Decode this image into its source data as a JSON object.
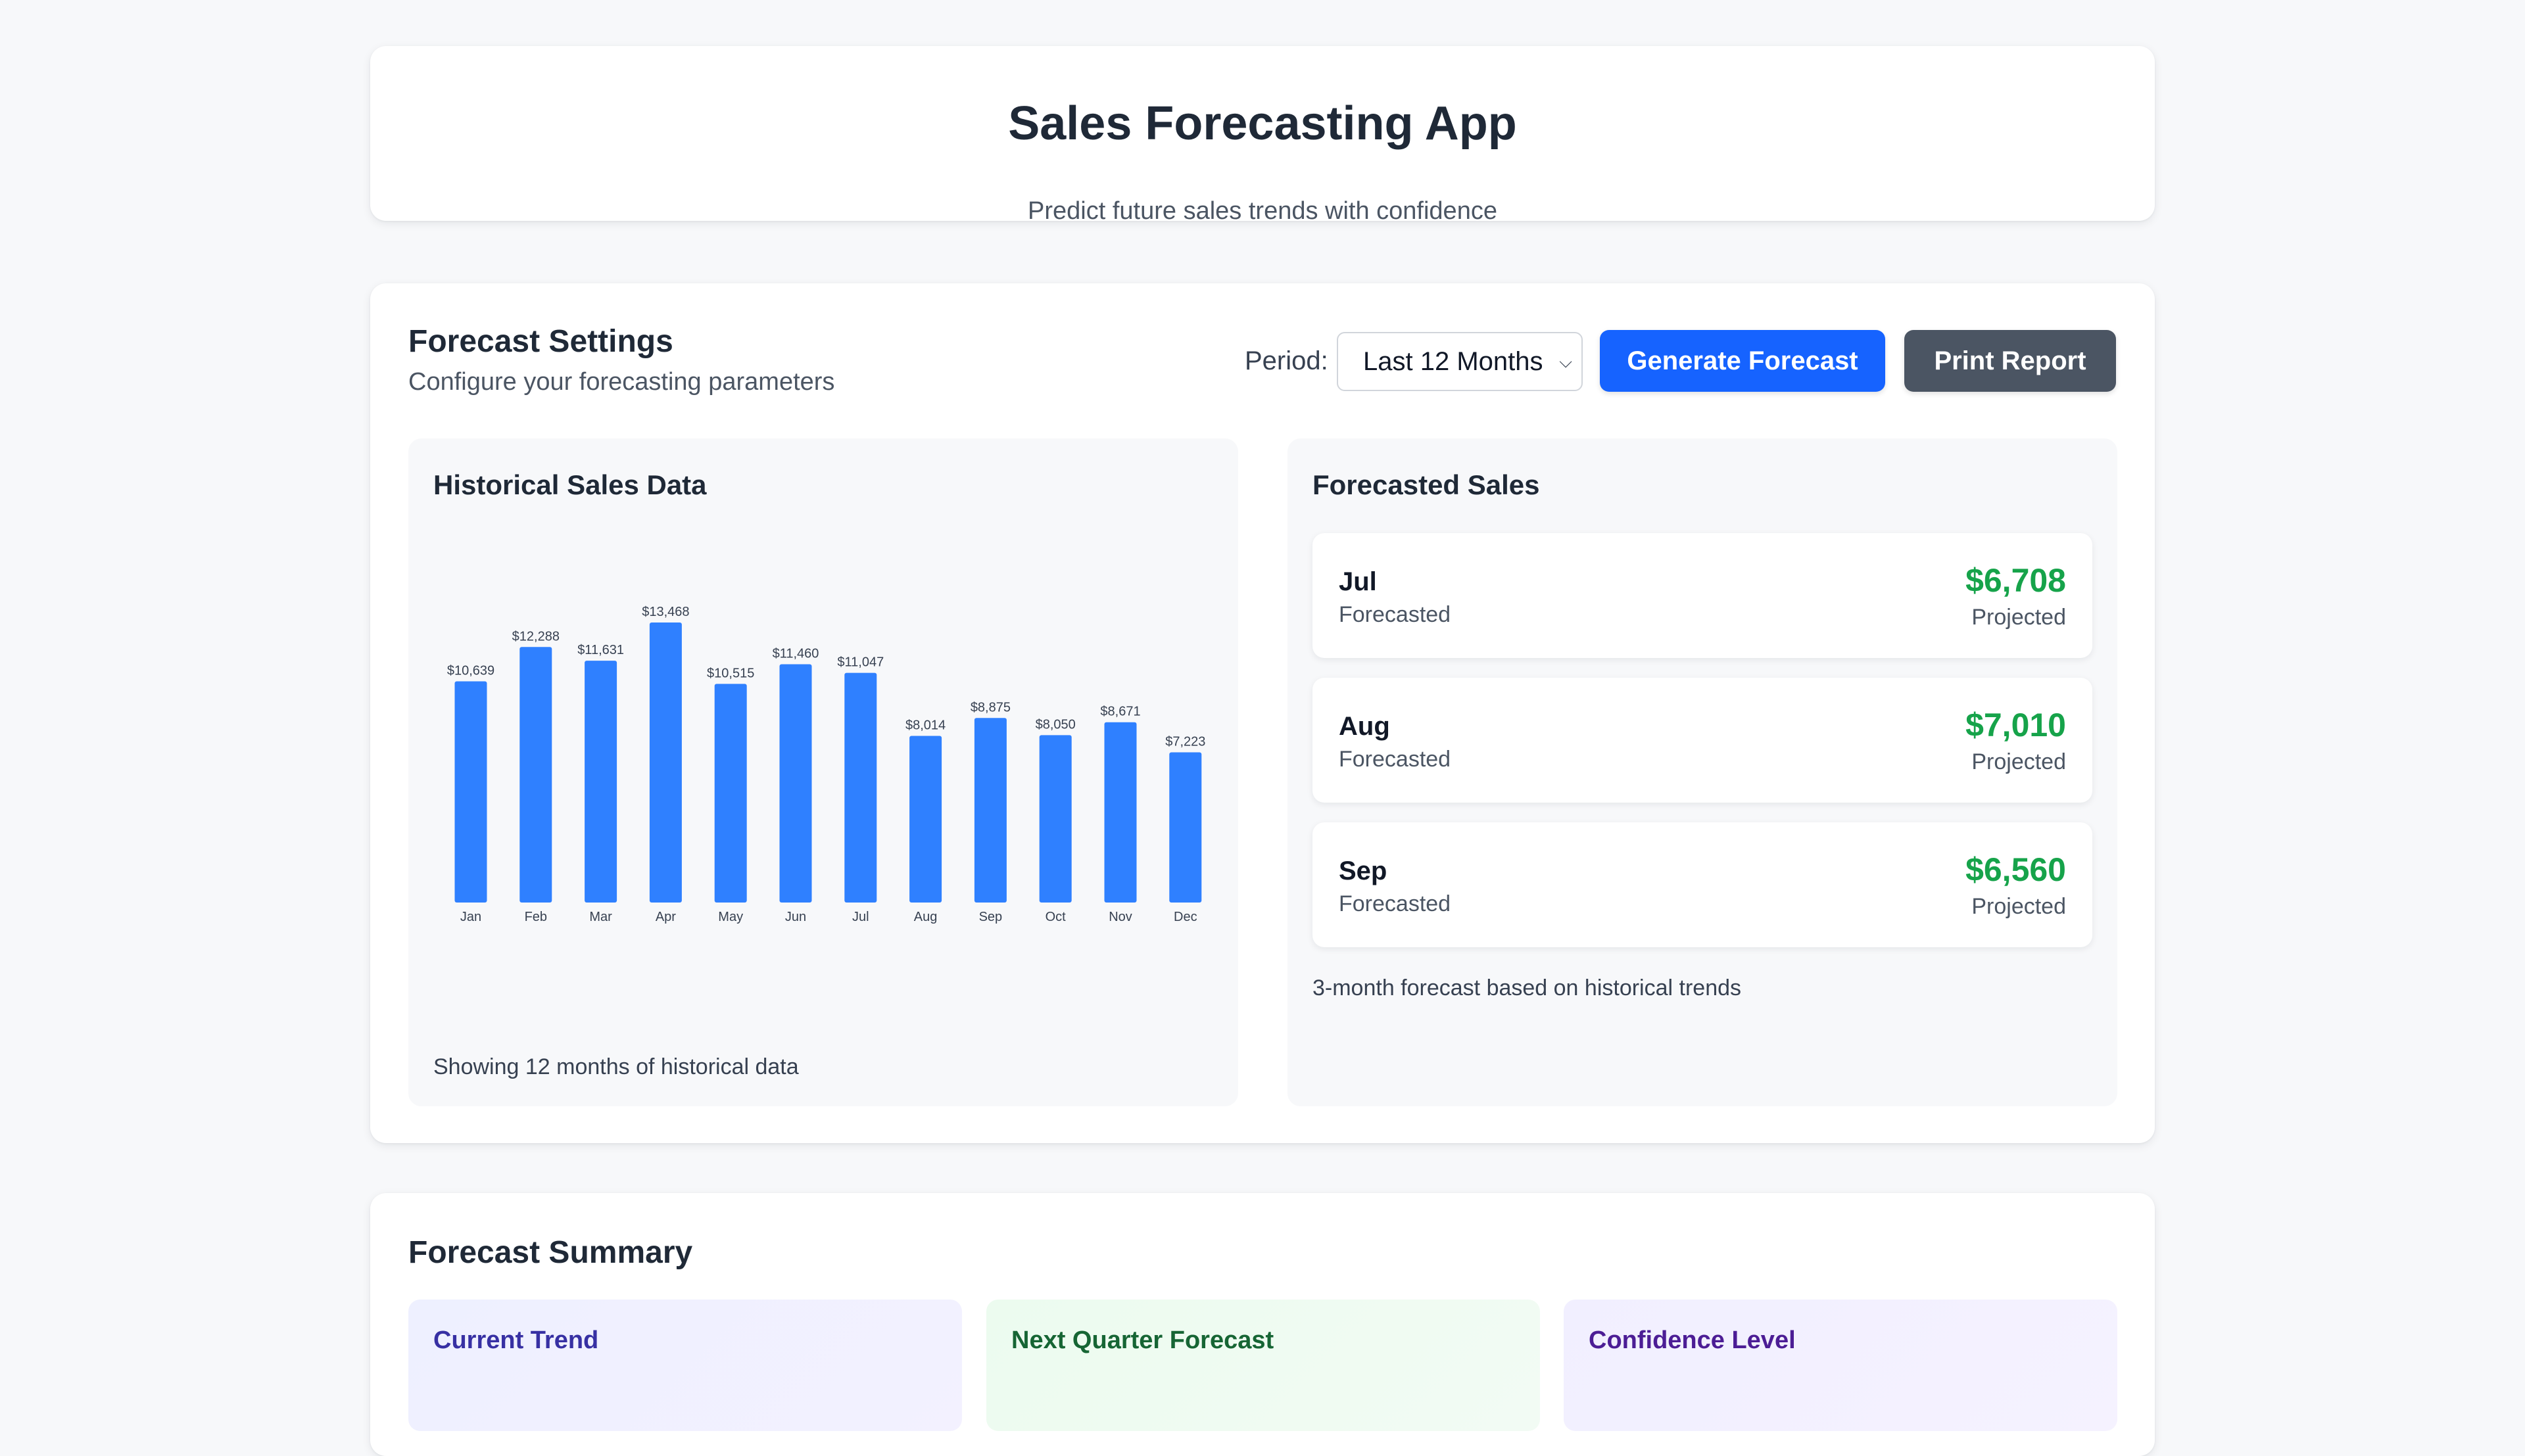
{
  "header": {
    "title": "Sales Forecasting App",
    "subtitle": "Predict future sales trends with confidence"
  },
  "settings": {
    "title": "Forecast Settings",
    "subtitle": "Configure your forecasting parameters",
    "period_label": "Period:",
    "period_value": "Last 12 Months",
    "generate_label": "Generate Forecast",
    "print_label": "Print Report"
  },
  "historical": {
    "title": "Historical Sales Data",
    "note": "Showing 12 months of historical data"
  },
  "chart_data": {
    "type": "bar",
    "categories": [
      "Jan",
      "Feb",
      "Mar",
      "Apr",
      "May",
      "Jun",
      "Jul",
      "Aug",
      "Sep",
      "Oct",
      "Nov",
      "Dec"
    ],
    "values": [
      10639,
      12288,
      11631,
      13468,
      10515,
      11460,
      11047,
      8014,
      8875,
      8050,
      8671,
      7223
    ],
    "labels": [
      "$10,639",
      "$12,288",
      "$11,631",
      "$13,468",
      "$10,515",
      "$11,460",
      "$11,047",
      "$8,014",
      "$8,875",
      "$8,050",
      "$8,671",
      "$7,223"
    ],
    "color": "#2f80ff",
    "ylim": [
      0,
      13468
    ],
    "title": "",
    "xlabel": "",
    "ylabel": ""
  },
  "forecast": {
    "title": "Forecasted Sales",
    "items": [
      {
        "month": "Jul",
        "sub": "Forecasted",
        "value": "$6,708",
        "proj": "Projected"
      },
      {
        "month": "Aug",
        "sub": "Forecasted",
        "value": "$7,010",
        "proj": "Projected"
      },
      {
        "month": "Sep",
        "sub": "Forecasted",
        "value": "$6,560",
        "proj": "Projected"
      }
    ],
    "note": "3-month forecast based on historical trends"
  },
  "summary": {
    "title": "Forecast Summary",
    "tiles": [
      {
        "label": "Current Trend"
      },
      {
        "label": "Next Quarter Forecast"
      },
      {
        "label": "Confidence Level"
      }
    ]
  },
  "colors": {
    "accent": "#1663ff",
    "positive": "#16a34a",
    "secondary_button": "#4b5563",
    "bar": "#2f80ff"
  }
}
